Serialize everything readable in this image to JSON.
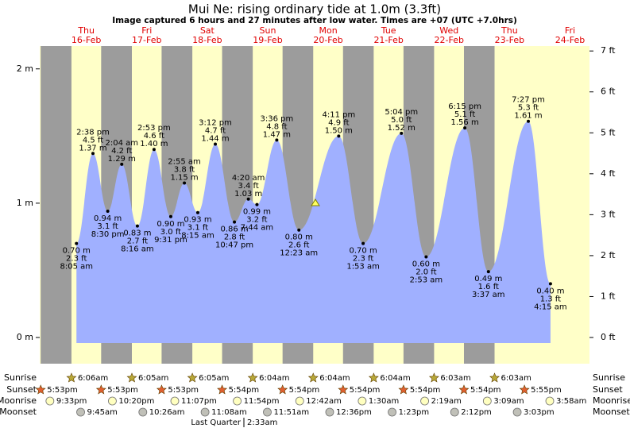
{
  "title": "Mui Ne: rising  ordinary tide at 1.0m (3.3ft)",
  "subtitle": "Image captured 6 hours and 27 minutes after low water. Times are +07 (UTC +7.0hrs)",
  "ylim": [
    -0.195,
    2.17
  ],
  "yticks": [
    {
      "value": 0,
      "label": "0 m"
    },
    {
      "value": 1,
      "label": "1 m"
    },
    {
      "value": 2,
      "label": "2 m"
    }
  ],
  "y2lim": [
    -0.64,
    7.12
  ],
  "y2ticks": [
    {
      "value": 0,
      "label": "0 ft"
    },
    {
      "value": 1,
      "label": "1 ft"
    },
    {
      "value": 2,
      "label": "2 ft"
    },
    {
      "value": 3,
      "label": "3 ft"
    },
    {
      "value": 4,
      "label": "4 ft"
    },
    {
      "value": 5,
      "label": "5 ft"
    },
    {
      "value": 6,
      "label": "6 ft"
    },
    {
      "value": 7,
      "label": "7 ft"
    }
  ],
  "row_labels": {
    "sunrise": "Sunrise",
    "sunset": "Sunset",
    "moonrise": "Moonrise",
    "moonset": "Moonset"
  },
  "days": [
    {
      "dow": null,
      "date": null,
      "sunrise": null,
      "sunset": "5:53pm",
      "moonrise": "9:33pm",
      "moonset": null,
      "tides": []
    },
    {
      "dow": "Thu",
      "date": "16-Feb",
      "sunrise": "6:06am",
      "sunset": "5:53pm",
      "moonrise": "10:20pm",
      "moonset": "9:45am",
      "tides": [
        {
          "time": "8:05 am",
          "height": 0.7,
          "height_label": "0.70 m",
          "feet_label": "2.3 ft",
          "kind": "low"
        },
        {
          "time": "2:38 pm",
          "height": 1.37,
          "height_label": "1.37 m",
          "feet_label": "4.5 ft",
          "kind": "high"
        },
        {
          "time": "8:30 pm",
          "height": 0.94,
          "height_label": "0.94 m",
          "feet_label": "3.1 ft",
          "kind": "low"
        }
      ]
    },
    {
      "dow": "Fri",
      "date": "17-Feb",
      "sunrise": "6:05am",
      "sunset": "5:53pm",
      "moonrise": "11:07pm",
      "moonset": "10:26am",
      "tides": [
        {
          "time": "2:04 am",
          "height": 1.29,
          "height_label": "1.29 m",
          "feet_label": "4.2 ft",
          "kind": "high"
        },
        {
          "time": "8:16 am",
          "height": 0.83,
          "height_label": "0.83 m",
          "feet_label": "2.7 ft",
          "kind": "low"
        },
        {
          "time": "2:53 pm",
          "height": 1.4,
          "height_label": "1.40 m",
          "feet_label": "4.6 ft",
          "kind": "high"
        },
        {
          "time": "9:31 pm",
          "height": 0.9,
          "height_label": "0.90 m",
          "feet_label": "3.0 ft",
          "kind": "low"
        }
      ]
    },
    {
      "dow": "Sat",
      "date": "18-Feb",
      "sunrise": "6:05am",
      "sunset": "5:54pm",
      "moonrise": "11:54pm",
      "moonset": "11:08am",
      "tides": [
        {
          "time": "2:55 am",
          "height": 1.15,
          "height_label": "1.15 m",
          "feet_label": "3.8 ft",
          "kind": "high"
        },
        {
          "time": "8:15 am",
          "height": 0.93,
          "height_label": "0.93 m",
          "feet_label": "3.1 ft",
          "kind": "low"
        },
        {
          "time": "3:12 pm",
          "height": 1.44,
          "height_label": "1.44 m",
          "feet_label": "4.7 ft",
          "kind": "high"
        },
        {
          "time": "10:47 pm",
          "height": 0.86,
          "height_label": "0.86 m",
          "feet_label": "2.8 ft",
          "kind": "low"
        }
      ]
    },
    {
      "dow": "Sun",
      "date": "19-Feb",
      "sunrise": "6:04am",
      "sunset": "5:54pm",
      "moonrise": null,
      "moonset": "11:51am",
      "moon_phase": "Last Quarter",
      "moon_phase_time": "2:33am",
      "tides": [
        {
          "time": "4:20 am",
          "height": 1.03,
          "height_label": "1.03 m",
          "feet_label": "3.4 ft",
          "kind": "high"
        },
        {
          "time": "7:44 am",
          "height": 0.99,
          "height_label": "0.99 m",
          "feet_label": "3.2 ft",
          "kind": "low"
        },
        {
          "time": "3:36 pm",
          "height": 1.47,
          "height_label": "1.47 m",
          "feet_label": "4.8 ft",
          "kind": "high"
        }
      ]
    },
    {
      "dow": "Mon",
      "date": "20-Feb",
      "sunrise": "6:04am",
      "sunset": "5:54pm",
      "moonrise": "12:42am",
      "moonset": "12:36pm",
      "tides": [
        {
          "time": "12:23 am",
          "height": 0.8,
          "height_label": "0.80 m",
          "feet_label": "2.6 ft",
          "kind": "low"
        },
        {
          "time": "4:11 pm",
          "height": 1.5,
          "height_label": "1.50 m",
          "feet_label": "4.9 ft",
          "kind": "high"
        }
      ]
    },
    {
      "dow": "Tue",
      "date": "21-Feb",
      "sunrise": "6:04am",
      "sunset": "5:54pm",
      "moonrise": "1:30am",
      "moonset": "1:23pm",
      "tides": [
        {
          "time": "1:53 am",
          "height": 0.7,
          "height_label": "0.70 m",
          "feet_label": "2.3 ft",
          "kind": "low"
        },
        {
          "time": "5:04 pm",
          "height": 1.52,
          "height_label": "1.52 m",
          "feet_label": "5.0 ft",
          "kind": "high"
        }
      ]
    },
    {
      "dow": "Wed",
      "date": "22-Feb",
      "sunrise": "6:03am",
      "sunset": "5:54pm",
      "moonrise": "2:19am",
      "moonset": "2:12pm",
      "tides": [
        {
          "time": "2:53 am",
          "height": 0.6,
          "height_label": "0.60 m",
          "feet_label": "2.0 ft",
          "kind": "low"
        },
        {
          "time": "6:15 pm",
          "height": 1.56,
          "height_label": "1.56 m",
          "feet_label": "5.1 ft",
          "kind": "high"
        }
      ]
    },
    {
      "dow": "Thu",
      "date": "23-Feb",
      "sunrise": "6:03am",
      "sunset": "5:55pm",
      "moonrise": "3:09am",
      "moonset": "3:03pm",
      "tides": [
        {
          "time": "3:37 am",
          "height": 0.49,
          "height_label": "0.49 m",
          "feet_label": "1.6 ft",
          "kind": "low"
        },
        {
          "time": "7:27 pm",
          "height": 1.61,
          "height_label": "1.61 m",
          "feet_label": "5.3 ft",
          "kind": "high"
        }
      ]
    },
    {
      "dow": "Fri",
      "date": "24-Feb",
      "sunrise": null,
      "sunset": null,
      "moonrise": "3:58am",
      "moonset": null,
      "tides": [
        {
          "time": "4:15 am",
          "height": 0.4,
          "height_label": "0.40 m",
          "feet_label": "1.3 ft",
          "kind": "low"
        }
      ]
    }
  ]
}
